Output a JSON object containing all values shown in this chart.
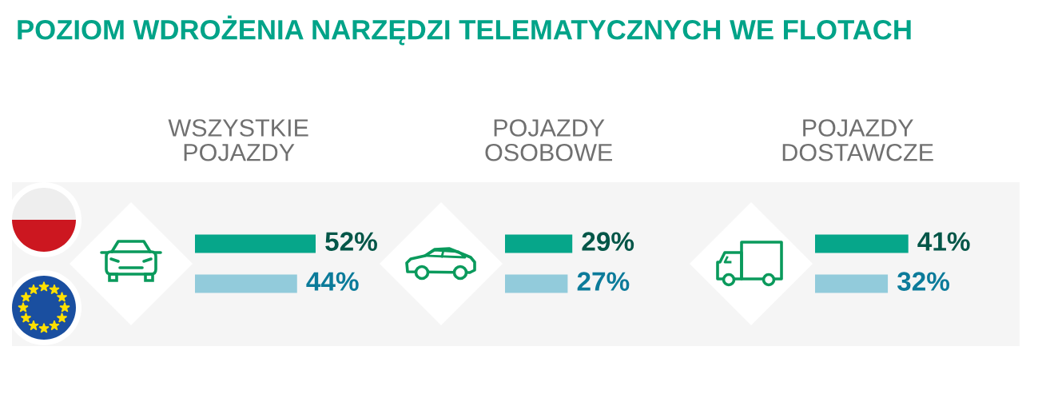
{
  "chart_data": [
    {
      "type": "bar",
      "title": "POZIOM WDROŻENIA NARZĘDZI TELEMATYCZNYCH WE FLOTACH",
      "subtitle": "WSZYSTKIE\nPOJAZDY",
      "orientation": "horizontal",
      "categories": [
        null,
        null
      ],
      "values": [
        52,
        44
      ],
      "colors": [
        "#06a68a",
        "#92cbdb"
      ],
      "value_labels": [
        "52%",
        "44%"
      ],
      "tick_labels": false
    },
    {
      "type": "bar",
      "subtitle": "POJAZDY\nOSOBOWE",
      "orientation": "horizontal",
      "categories": [
        null,
        null
      ],
      "values": [
        29,
        27
      ],
      "colors": [
        "#06a68a",
        "#92cbdb"
      ],
      "value_labels": [
        "29%",
        "27%"
      ],
      "tick_labels": false
    },
    {
      "type": "bar",
      "subtitle": "POJAZDY\nDOSTAWCZE",
      "orientation": "horizontal",
      "categories": [
        null,
        null
      ],
      "values": [
        41,
        32
      ],
      "colors": [
        "#06a68a",
        "#92cbdb"
      ],
      "value_labels": [
        "41%",
        "32%"
      ],
      "tick_labels": false
    }
  ]
}
